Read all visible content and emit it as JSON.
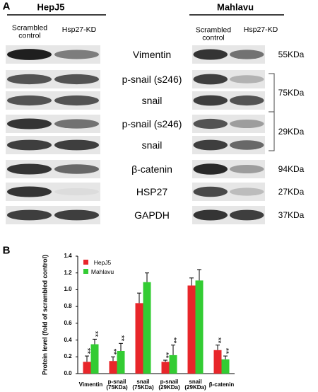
{
  "panel_a": {
    "panel_label": "A",
    "left": {
      "cell_line": "HepJ5",
      "lanes": [
        "Scrambled\ncontrol",
        "Hsp27-KD"
      ]
    },
    "right": {
      "cell_line": "Mahlavu",
      "lanes": [
        "Scrambled\ncontrol",
        "Hsp27-KD"
      ]
    },
    "rows": [
      "Vimentin",
      "p-snail (s246)",
      "snail",
      "p-snail (s246)",
      "snail",
      "β-catenin",
      "HSP27",
      "GAPDH"
    ],
    "sizes": [
      "55KDa",
      "75KDa",
      "29KDa",
      "94KDa",
      "27KDa",
      "37KDa"
    ]
  },
  "chart_data": {
    "type": "bar",
    "panel_label": "B",
    "y_label": "Protein level (fold of scrambled control)",
    "categories": [
      "Vimentin",
      "p-snail\n(75KDa)",
      "snail\n(75KDa)",
      "p-snail\n(29KDa)",
      "snail\n(29KDa)",
      "β-catenin"
    ],
    "series": [
      {
        "name": "HepJ5",
        "color": "#e8262a",
        "values": [
          0.14,
          0.15,
          0.84,
          0.14,
          1.05,
          0.28
        ],
        "errors": [
          0.07,
          0.05,
          0.12,
          0.02,
          0.09,
          0.06
        ],
        "annotations": [
          "**",
          "**",
          null,
          "**",
          null,
          "**"
        ]
      },
      {
        "name": "Mahlavu",
        "color": "#33cc33",
        "values": [
          0.35,
          0.27,
          1.09,
          0.22,
          1.11,
          0.17
        ],
        "errors": [
          0.06,
          0.09,
          0.11,
          0.12,
          0.13,
          0.04
        ],
        "annotations": [
          "**",
          "**",
          null,
          "**",
          null,
          "**"
        ]
      }
    ],
    "ylim": [
      0,
      1.4
    ],
    "yticks": [
      {
        "value": 0,
        "label": "0.0"
      },
      {
        "value": 0.2,
        "label": "0.2"
      },
      {
        "value": 0.4,
        "label": "0.4"
      },
      {
        "value": 0.6,
        "label": "0.6"
      },
      {
        "value": 0.8,
        "label": "0.8"
      },
      {
        "value": 1,
        "label": "1.0"
      },
      {
        "value": 1.2,
        "label": "1.2"
      },
      {
        "value": 1.4,
        "label": "1.4"
      }
    ]
  }
}
